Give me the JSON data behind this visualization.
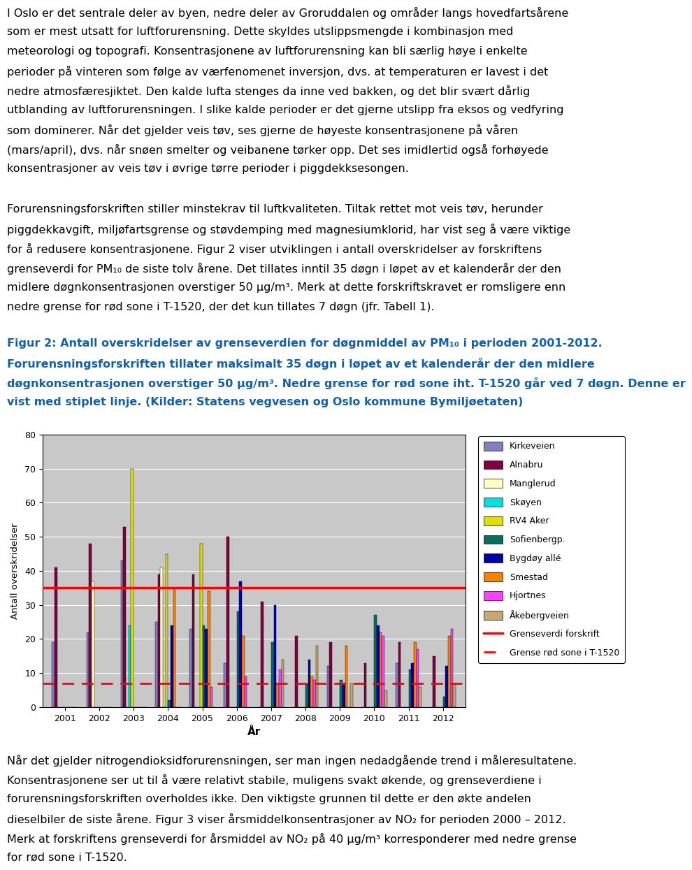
{
  "para1_lines": [
    "I Oslo er det sentrale deler av byen, nedre deler av Groruddalen og områder langs hovedfartsårene",
    "som er mest utsatt for luftforurensning. Dette skyldes utslippsmengde i kombinasjon med",
    "meteorologi og topografi. Konsentrasjonene av luftforurensning kan bli særlig høye i enkelte",
    "perioder på vinteren som følge av værfenomenet inversjon, dvs. at temperaturen er lavest i det",
    "nedre atmosfæresjiktet. Den kalde lufta stenges da inne ved bakken, og det blir svært dårlig",
    "utblanding av luftforurensningen. I slike kalde perioder er det gjerne utslipp fra eksos og vedfyring",
    "som dominerer. Når det gjelder veis tøv, ses gjerne de høyeste konsentrasjonene på våren",
    "(mars/april), dvs. når snøen smelter og veibanene tørker opp. Det ses imidlertid også forhøyede",
    "konsentrasjoner av veis tøv i øvrige tørre perioder i piggdekksesongen."
  ],
  "para2_lines": [
    "Forurensningsforskriften stiller minstekrav til luftkvaliteten. Tiltak rettet mot veis tøv, herunder",
    "piggdekkavgift, miljøfartsgrense og støvdemping med magnesiumklorid, har vist seg å være viktige",
    "for å redusere konsentrasjonene. Figur 2 viser utviklingen i antall overskridelser av forskriftens",
    "grenseverdi for PM₁₀ de siste tolv årene. Det tillates inntil 35 døgn i løpet av et kalenderår der den",
    "midlere døgnkonsentrasjonen overstiger 50 μg/m³. Merk at dette forskriftskravet er romsligere enn",
    "nedre grense for rød sone i T-1520, der det kun tillates 7 døgn (jfr. Tabell 1)."
  ],
  "caption_lines": [
    "Figur 2: Antall overskridelser av grenseverdien for døgnmiddel av PM₁₀ i perioden 2001-2012.",
    "Forurensningsforskriften tillater maksimalt 35 døgn i løpet av et kalenderår der den midlere",
    "døgnkonsentrasjonen overstiger 50 μg/m³. Nedre grense for rød sone iht. T-1520 går ved 7 døgn. Denne er",
    "vist med stiplet linje. (Kilder: Statens vegvesen og Oslo kommune Bymiljøetaten)"
  ],
  "para3_lines": [
    "Når det gjelder nitrogendioksidforurensningen, ser man ingen nedadgående trend i måleresultatene.",
    "Konsentrasjonene ser ut til å være relativt stabile, muligens svakt økende, og grenseverdiene i",
    "forurensningsforskriften overholdes ikke. Den viktigste grunnen til dette er den økte andelen",
    "dieselbiler de siste årene. Figur 3 viser årsmiddelkonsentrasjoner av NO₂ for perioden 2000 – 2012.",
    "Merk at forskriftens grenseverdi for årsmiddel av NO₂ på 40 μg/m³ korresponderer med nedre grense",
    "for rød sone i T-1520."
  ],
  "ylabel": "Antall overskridelser",
  "xlabel": "År",
  "years": [
    2001,
    2002,
    2003,
    2004,
    2005,
    2006,
    2007,
    2008,
    2009,
    2010,
    2011,
    2012
  ],
  "series": {
    "Kirkeveien": [
      19,
      22,
      43,
      25,
      23,
      13,
      0,
      0,
      12,
      0,
      13,
      0
    ],
    "Alnabru": [
      41,
      48,
      53,
      39,
      39,
      50,
      31,
      21,
      19,
      13,
      19,
      15
    ],
    "Manglerud": [
      0,
      37,
      0,
      41,
      0,
      0,
      0,
      0,
      0,
      0,
      0,
      0
    ],
    "Skøyen": [
      0,
      0,
      24,
      0,
      0,
      0,
      0,
      0,
      0,
      0,
      0,
      0
    ],
    "RV4 Aker": [
      0,
      0,
      70,
      45,
      48,
      0,
      0,
      0,
      0,
      0,
      0,
      0
    ],
    "Sofienbergp.": [
      0,
      0,
      0,
      2,
      24,
      28,
      19,
      7,
      8,
      27,
      11,
      3
    ],
    "Bygdøy allé": [
      0,
      0,
      0,
      24,
      23,
      37,
      30,
      14,
      7,
      24,
      13,
      12
    ],
    "Smestad": [
      0,
      0,
      0,
      35,
      34,
      21,
      7,
      9,
      18,
      22,
      19,
      21
    ],
    "Hjortnes": [
      0,
      0,
      0,
      0,
      6,
      9,
      11,
      8,
      0,
      21,
      17,
      23
    ],
    "Åkebergveien": [
      0,
      0,
      0,
      0,
      0,
      0,
      14,
      18,
      7,
      5,
      6,
      7
    ]
  },
  "colors": {
    "Kirkeveien": "#8080c0",
    "Alnabru": "#800040",
    "Manglerud": "#ffffc0",
    "Skøyen": "#00e0e0",
    "RV4 Aker": "#e0e000",
    "Sofienbergp.": "#007060",
    "Bygdøy allé": "#0000b0",
    "Smestad": "#ff8000",
    "Hjortnes": "#ff40ff",
    "Åkebergveien": "#c8a870"
  },
  "grenseverdi_forskrift": 35,
  "grense_rod_sone": 7,
  "ylim": [
    0,
    80
  ],
  "yticks": [
    0,
    10,
    20,
    30,
    40,
    50,
    60,
    70,
    80
  ],
  "bg_color": "#c8c8c8",
  "chart_border_color": "#000000",
  "text_fontsize": 11.5,
  "caption_fontsize": 11.5,
  "caption_color": "#1060b0"
}
